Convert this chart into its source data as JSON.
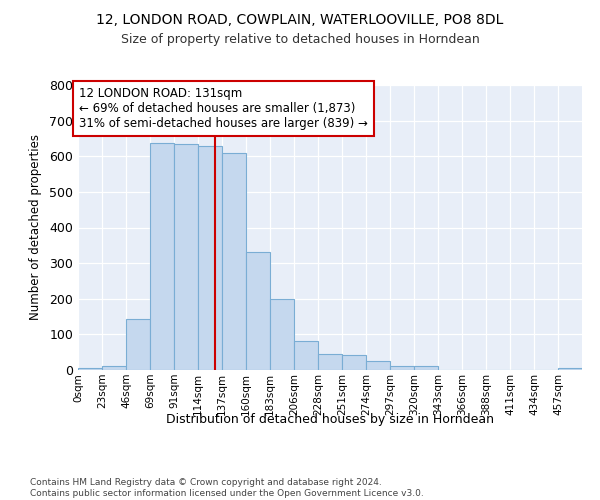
{
  "title1": "12, LONDON ROAD, COWPLAIN, WATERLOOVILLE, PO8 8DL",
  "title2": "Size of property relative to detached houses in Horndean",
  "xlabel": "Distribution of detached houses by size in Horndean",
  "ylabel": "Number of detached properties",
  "categories": [
    "0sqm",
    "23sqm",
    "46sqm",
    "69sqm",
    "91sqm",
    "114sqm",
    "137sqm",
    "160sqm",
    "183sqm",
    "206sqm",
    "228sqm",
    "251sqm",
    "274sqm",
    "297sqm",
    "320sqm",
    "343sqm",
    "366sqm",
    "388sqm",
    "411sqm",
    "434sqm",
    "457sqm"
  ],
  "values": [
    5,
    10,
    143,
    637,
    635,
    630,
    608,
    330,
    200,
    82,
    45,
    42,
    25,
    12,
    10,
    0,
    0,
    0,
    0,
    0,
    5
  ],
  "bar_color": "#c5d8ee",
  "bar_edge_color": "#7aadd4",
  "background_color": "#e8eef8",
  "grid_color": "#ffffff",
  "annotation_text": "12 LONDON ROAD: 131sqm\n← 69% of detached houses are smaller (1,873)\n31% of semi-detached houses are larger (839) →",
  "annotation_box_color": "#ffffff",
  "annotation_box_edge": "#cc0000",
  "vline_color": "#cc0000",
  "bin_width": 23,
  "ylim": [
    0,
    800
  ],
  "footer": "Contains HM Land Registry data © Crown copyright and database right 2024.\nContains public sector information licensed under the Open Government Licence v3.0.",
  "fig_bg": "#ffffff"
}
